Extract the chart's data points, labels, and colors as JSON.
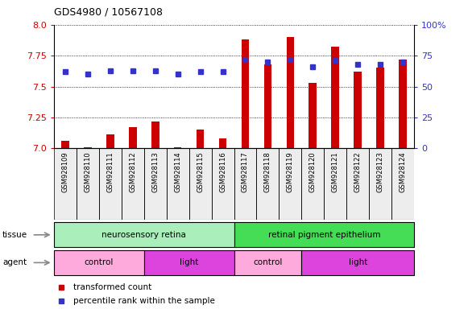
{
  "title": "GDS4980 / 10567108",
  "samples": [
    "GSM928109",
    "GSM928110",
    "GSM928111",
    "GSM928112",
    "GSM928113",
    "GSM928114",
    "GSM928115",
    "GSM928116",
    "GSM928117",
    "GSM928118",
    "GSM928119",
    "GSM928120",
    "GSM928121",
    "GSM928122",
    "GSM928123",
    "GSM928124"
  ],
  "transformed_count": [
    7.06,
    7.01,
    7.11,
    7.17,
    7.22,
    7.01,
    7.15,
    7.08,
    7.88,
    7.68,
    7.9,
    7.53,
    7.82,
    7.62,
    7.65,
    7.72
  ],
  "percentile_rank": [
    62,
    60,
    63,
    63,
    63,
    60,
    62,
    62,
    72,
    70,
    72,
    66,
    71,
    68,
    68,
    70
  ],
  "ylim_left": [
    7.0,
    8.0
  ],
  "ylim_right": [
    0,
    100
  ],
  "yticks_left": [
    7.0,
    7.25,
    7.5,
    7.75,
    8.0
  ],
  "yticks_right": [
    0,
    25,
    50,
    75,
    100
  ],
  "bar_color": "#cc0000",
  "dot_color": "#3333cc",
  "tissue_groups": [
    {
      "label": "neurosensory retina",
      "start": 0,
      "end": 8,
      "color": "#aaeebb"
    },
    {
      "label": "retinal pigment epithelium",
      "start": 8,
      "end": 16,
      "color": "#44dd55"
    }
  ],
  "agent_groups": [
    {
      "label": "control",
      "start": 0,
      "end": 4,
      "color": "#ffaadd"
    },
    {
      "label": "light",
      "start": 4,
      "end": 8,
      "color": "#dd44dd"
    },
    {
      "label": "control",
      "start": 8,
      "end": 11,
      "color": "#ffaadd"
    },
    {
      "label": "light",
      "start": 11,
      "end": 16,
      "color": "#dd44dd"
    }
  ],
  "legend_items": [
    {
      "label": "transformed count",
      "color": "#cc0000"
    },
    {
      "label": "percentile rank within the sample",
      "color": "#3333cc"
    }
  ],
  "left_tick_color": "#cc0000",
  "right_tick_color": "#3333cc",
  "grid_color": "#000000",
  "plot_bg": "#ffffff",
  "fig_bg": "#ffffff",
  "bar_width": 0.35
}
